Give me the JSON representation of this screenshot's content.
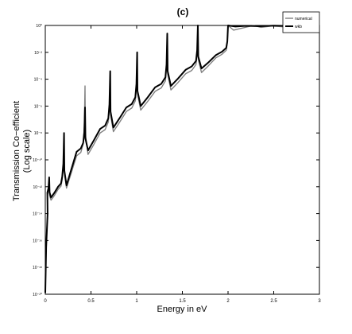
{
  "chart_data": {
    "type": "line",
    "title": "(c)",
    "xlabel": "Energy in eV",
    "ylabel": [
      "Transmission Co−efficient",
      "(Log scale)"
    ],
    "xlim": [
      0,
      3
    ],
    "ylim_log10": [
      -20,
      0
    ],
    "x_scale": "linear",
    "y_scale": "log",
    "grid": false,
    "legend_position": "top-right",
    "x_ticks": [
      {
        "value": 0,
        "label": "0"
      },
      {
        "value": 0.5,
        "label": "0.5"
      },
      {
        "value": 1,
        "label": "1"
      },
      {
        "value": 1.5,
        "label": "1.5"
      },
      {
        "value": 2,
        "label": "2"
      },
      {
        "value": 2.5,
        "label": "2.5"
      },
      {
        "value": 3,
        "label": "3"
      }
    ],
    "y_ticks": [
      {
        "value": -20,
        "label": "10⁻²⁰"
      },
      {
        "value": -18,
        "label": "10⁻¹⁸"
      },
      {
        "value": -16,
        "label": "10⁻¹⁶"
      },
      {
        "value": -14,
        "label": "10⁻¹⁴"
      },
      {
        "value": -12,
        "label": "10⁻¹²"
      },
      {
        "value": -10,
        "label": "10⁻¹⁰"
      },
      {
        "value": -8,
        "label": "10⁻⁸"
      },
      {
        "value": -6,
        "label": "10⁻⁶"
      },
      {
        "value": -4,
        "label": "10⁻⁴"
      },
      {
        "value": -2,
        "label": "10⁻²"
      },
      {
        "value": 0,
        "label": "10⁰"
      }
    ],
    "series": [
      {
        "name": "numerical",
        "color": "#808080",
        "width": 1.4,
        "resonances": [
          {
            "e": 0.043,
            "peak": -11.6,
            "left": -12.8
          },
          {
            "e": 0.205,
            "peak": -8.1,
            "left": -11.9
          },
          {
            "e": 0.435,
            "peak": -4.5,
            "left": -9.4
          },
          {
            "e": 0.71,
            "peak": -3.4,
            "left": -7.7
          },
          {
            "e": 1.005,
            "peak": -2.0,
            "left": -6.1
          },
          {
            "e": 1.335,
            "peak": -0.6,
            "left": -4.6
          },
          {
            "e": 1.67,
            "peak": 0.0,
            "left": -3.3
          },
          {
            "e": 2.0,
            "peak": 0.0,
            "left": -2.1
          }
        ],
        "tail": [
          [
            2.0,
            0.0
          ],
          [
            2.06,
            -0.35
          ],
          [
            2.15,
            -0.2
          ],
          [
            2.28,
            0.0
          ],
          [
            2.36,
            -0.14
          ],
          [
            2.48,
            -0.04
          ],
          [
            2.6,
            -0.1
          ],
          [
            2.72,
            -0.02
          ],
          [
            2.85,
            -0.05
          ],
          [
            3.0,
            0.0
          ]
        ]
      },
      {
        "name": "wkb",
        "color": "#000000",
        "width": 2.0,
        "resonances": [
          {
            "e": 0.043,
            "peak": -11.3,
            "left": -12.6
          },
          {
            "e": 0.205,
            "peak": -8.0,
            "left": -11.7
          },
          {
            "e": 0.435,
            "peak": -6.1,
            "left": -9.1
          },
          {
            "e": 0.71,
            "peak": -3.4,
            "left": -7.4
          },
          {
            "e": 1.005,
            "peak": -2.0,
            "left": -5.8
          },
          {
            "e": 1.335,
            "peak": -0.6,
            "left": -4.3
          },
          {
            "e": 1.67,
            "peak": 0.0,
            "left": -3.0
          },
          {
            "e": 2.0,
            "peak": 0.0,
            "left": -1.9
          }
        ],
        "tail": [
          [
            2.0,
            0.0
          ],
          [
            2.08,
            -0.08
          ],
          [
            2.2,
            -0.03
          ],
          [
            2.35,
            -0.06
          ],
          [
            2.5,
            -0.02
          ],
          [
            2.7,
            -0.04
          ],
          [
            3.0,
            -0.01
          ]
        ]
      }
    ]
  }
}
